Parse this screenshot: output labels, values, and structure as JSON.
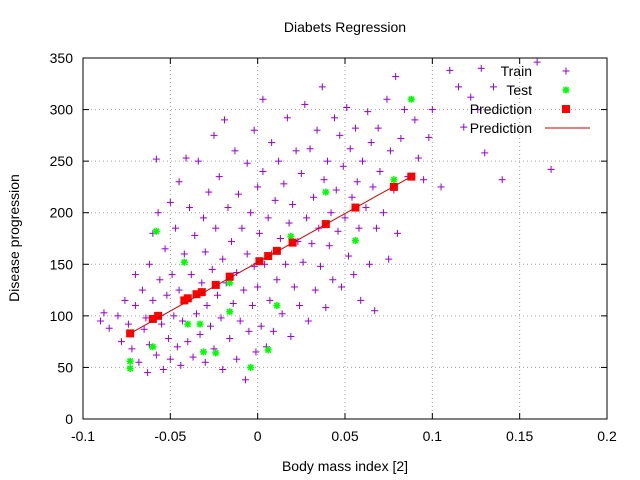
{
  "chart_data": {
    "type": "scatter",
    "title": "Diabets Regression",
    "xlabel": "Body mass index [2]",
    "ylabel": "Disease progression",
    "xlim": [
      -0.1,
      0.2
    ],
    "ylim": [
      0,
      350
    ],
    "xticks": [
      -0.1,
      -0.05,
      0,
      0.05,
      0.1,
      0.15,
      0.2
    ],
    "yticks": [
      0,
      50,
      100,
      150,
      200,
      250,
      300,
      350
    ],
    "xtick_labels": [
      "-0.1",
      "-0.05",
      "0",
      "0.05",
      "0.1",
      "0.15",
      "0.2"
    ],
    "ytick_labels": [
      "0",
      "50",
      "100",
      "150",
      "200",
      "250",
      "300",
      "350"
    ],
    "grid": true,
    "legend_position": "top-right",
    "series": [
      {
        "name": "Train",
        "kind": "points",
        "marker": "plus",
        "color": "#9400d3",
        "points": [
          [
            -0.09,
            95
          ],
          [
            -0.088,
            103
          ],
          [
            -0.085,
            88
          ],
          [
            -0.08,
            100
          ],
          [
            -0.078,
            75
          ],
          [
            -0.076,
            115
          ],
          [
            -0.074,
            92
          ],
          [
            -0.072,
            68
          ],
          [
            -0.07,
            140
          ],
          [
            -0.07,
            110
          ],
          [
            -0.068,
            55
          ],
          [
            -0.066,
            125
          ],
          [
            -0.065,
            87
          ],
          [
            -0.064,
            98
          ],
          [
            -0.063,
            45
          ],
          [
            -0.062,
            150
          ],
          [
            -0.062,
            72
          ],
          [
            -0.06,
            180
          ],
          [
            -0.06,
            115
          ],
          [
            -0.058,
            62
          ],
          [
            -0.058,
            252
          ],
          [
            -0.057,
            200
          ],
          [
            -0.056,
            135
          ],
          [
            -0.055,
            92
          ],
          [
            -0.054,
            48
          ],
          [
            -0.053,
            165
          ],
          [
            -0.052,
            120
          ],
          [
            -0.051,
            78
          ],
          [
            -0.05,
            210
          ],
          [
            -0.05,
            58
          ],
          [
            -0.049,
            140
          ],
          [
            -0.048,
            100
          ],
          [
            -0.047,
            185
          ],
          [
            -0.046,
            70
          ],
          [
            -0.045,
            230
          ],
          [
            -0.045,
            125
          ],
          [
            -0.044,
            52
          ],
          [
            -0.043,
            95
          ],
          [
            -0.042,
            160
          ],
          [
            -0.041,
            253
          ],
          [
            -0.04,
            115
          ],
          [
            -0.04,
            75
          ],
          [
            -0.039,
            205
          ],
          [
            -0.038,
            140
          ],
          [
            -0.037,
            60
          ],
          [
            -0.036,
            178
          ],
          [
            -0.035,
            102
          ],
          [
            -0.034,
            250
          ],
          [
            -0.033,
            82
          ],
          [
            -0.032,
            132
          ],
          [
            -0.031,
            195
          ],
          [
            -0.03,
            55
          ],
          [
            -0.03,
            162
          ],
          [
            -0.029,
            110
          ],
          [
            -0.028,
            220
          ],
          [
            -0.027,
            90
          ],
          [
            -0.026,
            145
          ],
          [
            -0.025,
            275
          ],
          [
            -0.025,
            68
          ],
          [
            -0.024,
            185
          ],
          [
            -0.023,
            120
          ],
          [
            -0.022,
            235
          ],
          [
            -0.021,
            98
          ],
          [
            -0.02,
            155
          ],
          [
            -0.02,
            48
          ],
          [
            -0.019,
            290
          ],
          [
            -0.018,
            132
          ],
          [
            -0.017,
            205
          ],
          [
            -0.016,
            78
          ],
          [
            -0.015,
            172
          ],
          [
            -0.014,
            112
          ],
          [
            -0.013,
            260
          ],
          [
            -0.012,
            58
          ],
          [
            -0.012,
            142
          ],
          [
            -0.011,
            218
          ],
          [
            -0.01,
            95
          ],
          [
            -0.009,
            185
          ],
          [
            -0.008,
            125
          ],
          [
            -0.007,
            38
          ],
          [
            -0.006,
            248
          ],
          [
            -0.006,
            160
          ],
          [
            -0.005,
            85
          ],
          [
            -0.004,
            200
          ],
          [
            -0.003,
            110
          ],
          [
            -0.002,
            280
          ],
          [
            -0.002,
            148
          ],
          [
            -0.001,
            65
          ],
          [
            0.0,
            225
          ],
          [
            0.0,
            128
          ],
          [
            0.001,
            180
          ],
          [
            0.002,
            90
          ],
          [
            0.003,
            310
          ],
          [
            0.003,
            240
          ],
          [
            0.004,
            150
          ],
          [
            0.005,
            70
          ],
          [
            0.006,
            195
          ],
          [
            0.007,
            115
          ],
          [
            0.008,
            268
          ],
          [
            0.008,
            160
          ],
          [
            0.009,
            85
          ],
          [
            0.01,
            212
          ],
          [
            0.011,
            135
          ],
          [
            0.012,
            250
          ],
          [
            0.013,
            175
          ],
          [
            0.014,
            102
          ],
          [
            0.015,
            228
          ],
          [
            0.016,
            150
          ],
          [
            0.017,
            292
          ],
          [
            0.018,
            190
          ],
          [
            0.019,
            80
          ],
          [
            0.02,
            208
          ],
          [
            0.021,
            128
          ],
          [
            0.022,
            260
          ],
          [
            0.023,
            172
          ],
          [
            0.024,
            110
          ],
          [
            0.025,
            238
          ],
          [
            0.026,
            152
          ],
          [
            0.027,
            305
          ],
          [
            0.028,
            195
          ],
          [
            0.029,
            95
          ],
          [
            0.03,
            262
          ],
          [
            0.031,
            170
          ],
          [
            0.032,
            215
          ],
          [
            0.033,
            125
          ],
          [
            0.034,
            280
          ],
          [
            0.035,
            185
          ],
          [
            0.036,
            148
          ],
          [
            0.037,
            322
          ],
          [
            0.038,
            232
          ],
          [
            0.039,
            108
          ],
          [
            0.04,
            250
          ],
          [
            0.041,
            168
          ],
          [
            0.042,
            200
          ],
          [
            0.043,
            135
          ],
          [
            0.044,
            292
          ],
          [
            0.045,
            222
          ],
          [
            0.046,
            182
          ],
          [
            0.047,
            275
          ],
          [
            0.048,
            128
          ],
          [
            0.049,
            245
          ],
          [
            0.05,
            195
          ],
          [
            0.051,
            302
          ],
          [
            0.052,
            158
          ],
          [
            0.053,
            262
          ],
          [
            0.054,
            215
          ],
          [
            0.055,
            140
          ],
          [
            0.056,
            282
          ],
          [
            0.057,
            230
          ],
          [
            0.058,
            185
          ],
          [
            0.059,
            115
          ],
          [
            0.06,
            250
          ],
          [
            0.062,
            205
          ],
          [
            0.063,
            298
          ],
          [
            0.064,
            150
          ],
          [
            0.065,
            268
          ],
          [
            0.066,
            225
          ],
          [
            0.067,
            105
          ],
          [
            0.068,
            185
          ],
          [
            0.069,
            282
          ],
          [
            0.07,
            240
          ],
          [
            0.072,
            200
          ],
          [
            0.074,
            310
          ],
          [
            0.075,
            155
          ],
          [
            0.076,
            260
          ],
          [
            0.078,
            222
          ],
          [
            0.079,
            332
          ],
          [
            0.08,
            180
          ],
          [
            0.082,
            272
          ],
          [
            0.084,
            300
          ],
          [
            0.086,
            235
          ],
          [
            0.09,
            290
          ],
          [
            0.092,
            253
          ],
          [
            0.095,
            232
          ],
          [
            0.098,
            273
          ],
          [
            0.1,
            300
          ],
          [
            0.105,
            225
          ],
          [
            0.11,
            338
          ],
          [
            0.115,
            322
          ],
          [
            0.118,
            283
          ],
          [
            0.122,
            312
          ],
          [
            0.126,
            300
          ],
          [
            0.128,
            340
          ],
          [
            0.13,
            258
          ],
          [
            0.135,
            322
          ],
          [
            0.14,
            232
          ],
          [
            0.16,
            346
          ],
          [
            0.168,
            242
          ]
        ]
      },
      {
        "name": "Test",
        "kind": "points",
        "marker": "star",
        "color": "#00ff00",
        "points": [
          [
            -0.073,
            56
          ],
          [
            -0.073,
            49
          ],
          [
            -0.06,
            70
          ],
          [
            -0.058,
            182
          ],
          [
            -0.042,
            152
          ],
          [
            -0.04,
            92
          ],
          [
            -0.033,
            92
          ],
          [
            -0.031,
            65
          ],
          [
            -0.024,
            64
          ],
          [
            -0.016,
            104
          ],
          [
            -0.016,
            132
          ],
          [
            -0.004,
            50
          ],
          [
            0.006,
            67
          ],
          [
            0.011,
            110
          ],
          [
            0.019,
            177
          ],
          [
            0.039,
            220
          ],
          [
            0.056,
            173
          ],
          [
            0.078,
            232
          ],
          [
            0.088,
            310
          ]
        ]
      },
      {
        "name": "Prediction",
        "kind": "points",
        "marker": "square",
        "color": "#ff0000",
        "points": [
          [
            -0.073,
            83
          ],
          [
            -0.06,
            97
          ],
          [
            -0.057,
            100
          ],
          [
            -0.042,
            115
          ],
          [
            -0.04,
            117
          ],
          [
            -0.035,
            121
          ],
          [
            -0.032,
            123
          ],
          [
            -0.024,
            130
          ],
          [
            -0.016,
            138
          ],
          [
            0.001,
            153
          ],
          [
            0.006,
            158
          ],
          [
            0.011,
            163
          ],
          [
            0.02,
            171
          ],
          [
            0.039,
            189
          ],
          [
            0.056,
            205
          ],
          [
            0.078,
            225
          ],
          [
            0.088,
            235
          ]
        ]
      },
      {
        "name": "Prediction",
        "kind": "line",
        "color": "#cc0000",
        "points": [
          [
            -0.073,
            83
          ],
          [
            0.088,
            235
          ]
        ]
      }
    ]
  }
}
